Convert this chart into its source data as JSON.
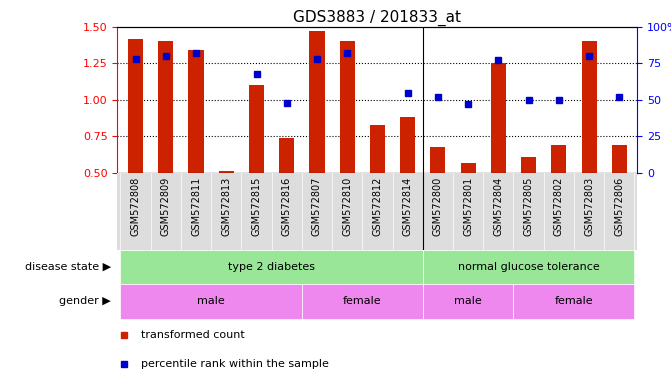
{
  "title": "GDS3883 / 201833_at",
  "samples": [
    "GSM572808",
    "GSM572809",
    "GSM572811",
    "GSM572813",
    "GSM572815",
    "GSM572816",
    "GSM572807",
    "GSM572810",
    "GSM572812",
    "GSM572814",
    "GSM572800",
    "GSM572801",
    "GSM572804",
    "GSM572805",
    "GSM572802",
    "GSM572803",
    "GSM572806"
  ],
  "transformed_count": [
    1.42,
    1.4,
    1.34,
    0.51,
    1.1,
    0.74,
    1.47,
    1.4,
    0.83,
    0.88,
    0.68,
    0.57,
    1.25,
    0.61,
    0.69,
    1.4,
    0.69
  ],
  "percentile_rank": [
    78,
    80,
    82,
    null,
    68,
    48,
    78,
    82,
    null,
    55,
    52,
    47,
    77,
    50,
    50,
    80,
    52
  ],
  "ymin": 0.5,
  "ymax": 1.5,
  "y2min": 0,
  "y2max": 100,
  "yticks": [
    0.5,
    0.75,
    1.0,
    1.25,
    1.5
  ],
  "y2ticks": [
    0,
    25,
    50,
    75,
    100
  ],
  "bar_color": "#cc2200",
  "dot_color": "#0000cc",
  "bg_disease_color": "#99e699",
  "bg_gender_color": "#ee88ee",
  "bg_xticklabel_color": "#dddddd",
  "bar_width": 0.5,
  "disease_state_groups": [
    {
      "label": "type 2 diabetes",
      "start": 0,
      "end": 9
    },
    {
      "label": "normal glucose tolerance",
      "start": 10,
      "end": 16
    }
  ],
  "gender_groups": [
    {
      "label": "male",
      "start": 0,
      "end": 5
    },
    {
      "label": "female",
      "start": 6,
      "end": 9
    },
    {
      "label": "male",
      "start": 10,
      "end": 12
    },
    {
      "label": "female",
      "start": 13,
      "end": 16
    }
  ]
}
